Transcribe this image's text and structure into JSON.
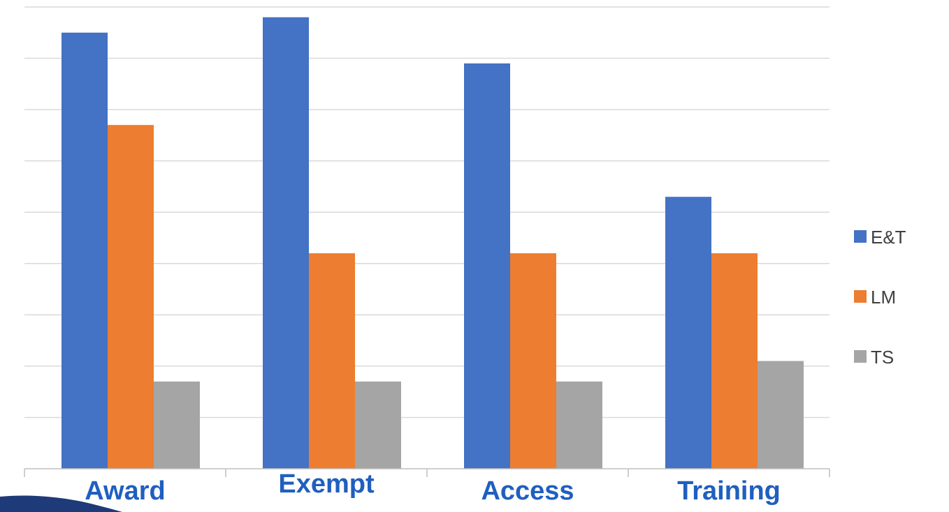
{
  "chart_data": {
    "type": "bar",
    "title": "",
    "xlabel": "",
    "ylabel": "",
    "categories": [
      "Award",
      "Exempt",
      "Access",
      "Training"
    ],
    "series": [
      {
        "name": "E&T",
        "color": "#4472c4",
        "values": [
          8.5,
          8.8,
          7.9,
          5.3
        ]
      },
      {
        "name": "LM",
        "color": "#ed7d31",
        "values": [
          6.7,
          4.2,
          4.2,
          4.2
        ]
      },
      {
        "name": "TS",
        "color": "#a5a5a5",
        "values": [
          1.7,
          1.7,
          1.7,
          2.1
        ]
      }
    ],
    "ylim": [
      0,
      9
    ],
    "grid": true,
    "y_tick_labels_shown": false,
    "legend_position": "right"
  }
}
